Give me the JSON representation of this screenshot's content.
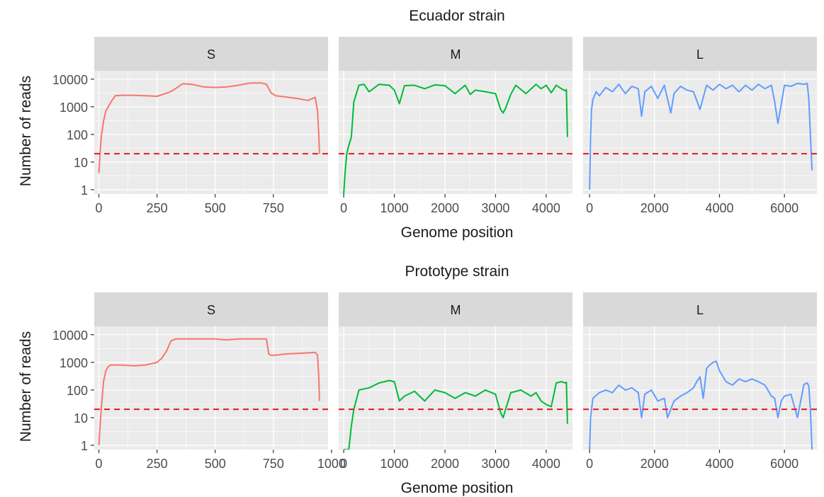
{
  "figure": {
    "threshold_label": "",
    "colors": {
      "panel_bg": "#ebebeb",
      "strip_bg": "#d9d9d9",
      "grid_major": "#ffffff",
      "S": "#f8766d",
      "M": "#00ba38",
      "L": "#619cff",
      "threshold": "#e31a1c",
      "text": "#1a1a1a",
      "tick_text": "#4d4d4d"
    }
  },
  "chart_data": [
    {
      "type": "line",
      "title": "Ecuador strain",
      "xlabel": "Genome position",
      "ylabel": "Number of reads",
      "y_scale": "log10",
      "ylim": [
        0.7,
        20000
      ],
      "y_ticks": [
        1,
        10,
        100,
        1000,
        10000
      ],
      "y_tick_labels": [
        "1",
        "10",
        "100",
        "1000",
        "10000"
      ],
      "threshold": 20,
      "panels": [
        {
          "strip": "S",
          "xlim": [
            -20,
            985
          ],
          "x_ticks": [
            0,
            250,
            500,
            750
          ],
          "x_tick_labels": [
            "0",
            "250",
            "500",
            "750"
          ],
          "x": [
            0,
            5,
            10,
            20,
            30,
            50,
            70,
            100,
            150,
            200,
            250,
            300,
            320,
            340,
            360,
            400,
            450,
            500,
            550,
            600,
            650,
            700,
            720,
            740,
            760,
            800,
            850,
            900,
            930,
            940,
            945,
            948
          ],
          "y": [
            4,
            20,
            80,
            300,
            700,
            1400,
            2500,
            2600,
            2600,
            2500,
            2400,
            3300,
            4000,
            5200,
            6800,
            6500,
            5200,
            5000,
            5200,
            6000,
            7200,
            7200,
            6500,
            3200,
            2500,
            2300,
            2000,
            1700,
            2200,
            700,
            100,
            20
          ]
        },
        {
          "strip": "M",
          "xlim": [
            -100,
            4520
          ],
          "x_ticks": [
            0,
            1000,
            2000,
            3000,
            4000
          ],
          "x_tick_labels": [
            "0",
            "1000",
            "2000",
            "3000",
            "4000"
          ],
          "x": [
            0,
            30,
            60,
            100,
            150,
            200,
            300,
            400,
            500,
            700,
            900,
            1000,
            1100,
            1200,
            1400,
            1600,
            1800,
            2000,
            2200,
            2400,
            2500,
            2600,
            2800,
            3000,
            3100,
            3150,
            3200,
            3300,
            3400,
            3600,
            3800,
            3900,
            4000,
            4100,
            4200,
            4300,
            4380,
            4400,
            4420
          ],
          "y": [
            0.7,
            5,
            20,
            40,
            80,
            1500,
            6000,
            6500,
            3500,
            6500,
            6000,
            4000,
            1300,
            5800,
            6000,
            4500,
            6200,
            5800,
            3000,
            6000,
            2800,
            4000,
            3500,
            3000,
            800,
            600,
            900,
            2800,
            6000,
            3000,
            6500,
            4500,
            6000,
            3200,
            6000,
            4500,
            3800,
            4200,
            80
          ]
        },
        {
          "strip": "L",
          "xlim": [
            -200,
            7000
          ],
          "x_ticks": [
            0,
            2000,
            4000,
            6000
          ],
          "x_tick_labels": [
            "0",
            "2000",
            "4000",
            "6000"
          ],
          "x": [
            0,
            30,
            60,
            100,
            200,
            300,
            500,
            700,
            900,
            1100,
            1300,
            1500,
            1600,
            1700,
            1900,
            2100,
            2300,
            2500,
            2600,
            2800,
            3000,
            3200,
            3400,
            3600,
            3800,
            4000,
            4200,
            4400,
            4600,
            4800,
            5000,
            5200,
            5400,
            5600,
            5700,
            5800,
            6000,
            6200,
            6400,
            6600,
            6700,
            6750,
            6800,
            6850
          ],
          "y": [
            1,
            80,
            800,
            1800,
            3500,
            2500,
            5000,
            3500,
            6500,
            3000,
            5500,
            4500,
            450,
            3500,
            5500,
            2000,
            6000,
            600,
            3000,
            5500,
            4000,
            3500,
            800,
            6000,
            4000,
            6500,
            4500,
            6000,
            3500,
            6000,
            4000,
            6500,
            4500,
            6000,
            1500,
            250,
            6000,
            5500,
            7000,
            6500,
            7000,
            2000,
            100,
            5
          ]
        }
      ]
    },
    {
      "type": "line",
      "title": "Prototype strain",
      "xlabel": "Genome position",
      "ylabel": "Number of reads",
      "y_scale": "log10",
      "ylim": [
        0.7,
        20000
      ],
      "y_ticks": [
        1,
        10,
        100,
        1000,
        10000
      ],
      "y_tick_labels": [
        "1",
        "10",
        "100",
        "1000",
        "10000"
      ],
      "threshold": 20,
      "panels": [
        {
          "strip": "S",
          "xlim": [
            -20,
            985
          ],
          "x_ticks": [
            0,
            250,
            500,
            750,
            1000
          ],
          "x_tick_labels": [
            "0",
            "250",
            "500",
            "750",
            "1000"
          ],
          "x": [
            0,
            5,
            10,
            20,
            30,
            40,
            50,
            70,
            100,
            150,
            200,
            250,
            270,
            290,
            310,
            330,
            400,
            450,
            500,
            550,
            600,
            650,
            700,
            720,
            730,
            740,
            760,
            800,
            850,
            900,
            930,
            940,
            945,
            948
          ],
          "y": [
            1,
            5,
            20,
            200,
            500,
            700,
            800,
            800,
            800,
            750,
            800,
            1000,
            1400,
            2500,
            6000,
            7000,
            7000,
            7000,
            7000,
            6500,
            7000,
            7000,
            7000,
            7000,
            2000,
            1800,
            1800,
            2000,
            2100,
            2200,
            2300,
            1800,
            300,
            40
          ]
        },
        {
          "strip": "M",
          "xlim": [
            -100,
            4520
          ],
          "x_ticks": [
            0,
            1000,
            2000,
            3000,
            4000
          ],
          "x_tick_labels": [
            "0",
            "1000",
            "2000",
            "3000",
            "4000"
          ],
          "x": [
            0,
            50,
            100,
            150,
            200,
            300,
            500,
            700,
            900,
            1000,
            1100,
            1200,
            1400,
            1600,
            1800,
            2000,
            2200,
            2400,
            2600,
            2800,
            3000,
            3100,
            3150,
            3200,
            3300,
            3500,
            3700,
            3800,
            3900,
            4000,
            4100,
            4200,
            4300,
            4380,
            4400,
            4420
          ],
          "y": [
            0.5,
            0.7,
            0.7,
            5,
            20,
            100,
            120,
            180,
            220,
            200,
            40,
            60,
            90,
            40,
            100,
            80,
            50,
            80,
            60,
            100,
            70,
            15,
            10,
            20,
            80,
            100,
            60,
            80,
            40,
            30,
            25,
            180,
            200,
            180,
            190,
            6
          ]
        },
        {
          "strip": "L",
          "xlim": [
            -200,
            7000
          ],
          "x_ticks": [
            0,
            2000,
            4000,
            6000
          ],
          "x_tick_labels": [
            "0",
            "2000",
            "4000",
            "6000"
          ],
          "x": [
            0,
            30,
            100,
            300,
            500,
            700,
            900,
            1100,
            1300,
            1500,
            1600,
            1700,
            1900,
            2100,
            2300,
            2400,
            2600,
            2800,
            3000,
            3200,
            3300,
            3400,
            3500,
            3600,
            3700,
            3800,
            3900,
            4000,
            4200,
            4400,
            4600,
            4800,
            5000,
            5200,
            5400,
            5600,
            5700,
            5800,
            5900,
            6000,
            6200,
            6400,
            6600,
            6700,
            6750,
            6800,
            6850
          ],
          "y": [
            0.5,
            10,
            50,
            80,
            100,
            80,
            150,
            100,
            120,
            80,
            10,
            70,
            100,
            40,
            50,
            10,
            40,
            60,
            80,
            120,
            200,
            300,
            50,
            600,
            800,
            1000,
            1100,
            500,
            200,
            150,
            250,
            200,
            250,
            200,
            150,
            60,
            50,
            10,
            40,
            60,
            70,
            10,
            160,
            180,
            140,
            20,
            0.5
          ]
        }
      ]
    }
  ]
}
